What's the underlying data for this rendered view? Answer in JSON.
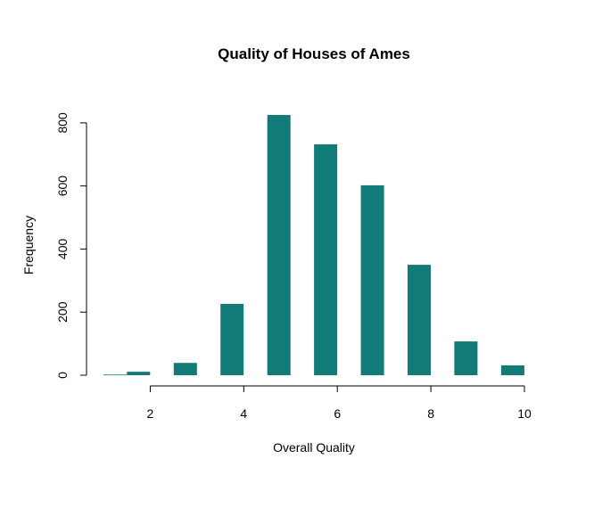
{
  "chart_data": {
    "type": "bar",
    "title": "Quality of Houses of Ames",
    "xlabel": "Overall Quality",
    "ylabel": "Frequency",
    "x": [
      1.25,
      1.75,
      2.75,
      3.75,
      4.75,
      5.75,
      6.75,
      7.75,
      8.75,
      9.75
    ],
    "values": [
      2,
      11,
      39,
      226,
      825,
      732,
      602,
      350,
      107,
      31
    ],
    "xlim": [
      1,
      10
    ],
    "ylim": [
      0,
      825
    ],
    "xticks": [
      "2",
      "4",
      "6",
      "8",
      "10"
    ],
    "yticks": [
      "0",
      "200",
      "400",
      "600",
      "800"
    ],
    "grid": false,
    "bar_color": "#127a77"
  }
}
